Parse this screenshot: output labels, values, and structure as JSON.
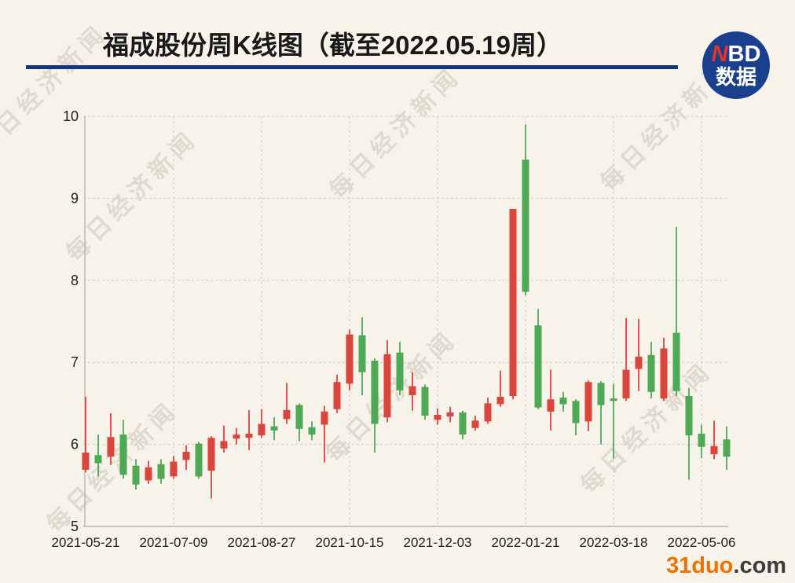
{
  "title": "福成股份周K线图（截至2022.05.19周）",
  "logo": {
    "line1_accent": "N",
    "line1_rest": "BD",
    "line2": "数据",
    "circle_color": "#1b3f8f",
    "accent_color": "#e2352b"
  },
  "watermark": {
    "text": "每日经济新闻"
  },
  "footer_brand": {
    "bold": "31duo",
    "suffix": ".com",
    "bold_color": "#f07000"
  },
  "colors": {
    "background": "#f7f3eb",
    "up": "#dc453c",
    "down": "#4fa854",
    "grid": "#cccccc",
    "axis": "#b8b5ac",
    "label": "#1e1e1e",
    "title_underline": "#14387e"
  },
  "chart_data": {
    "type": "candlestick",
    "title": "福成股份周K线图（截至2022.05.19周）",
    "ylabel": "",
    "xlabel": "",
    "ylim": [
      5,
      10.3
    ],
    "y_ticks": [
      5,
      6,
      7,
      8,
      9,
      10
    ],
    "grid": "dashed",
    "x_tick_labels": [
      "2021-05-21",
      "2021-07-09",
      "2021-08-27",
      "2021-10-15",
      "2021-12-03",
      "2022-01-21",
      "2022-03-18",
      "2022-05-06"
    ],
    "x_tick_indices": [
      0,
      7,
      14,
      21,
      28,
      35,
      42,
      49
    ],
    "columns": [
      "date",
      "open",
      "high",
      "low",
      "close"
    ],
    "rows": [
      [
        "2021-05-21",
        5.69,
        6.58,
        5.66,
        5.9
      ],
      [
        "2021-05-28",
        5.87,
        6.12,
        5.61,
        5.77
      ],
      [
        "2021-06-04",
        5.85,
        6.38,
        5.75,
        6.09
      ],
      [
        "2021-06-11",
        6.12,
        6.3,
        5.58,
        5.63
      ],
      [
        "2021-06-18",
        5.74,
        5.82,
        5.45,
        5.51
      ],
      [
        "2021-06-25",
        5.56,
        5.8,
        5.52,
        5.72
      ],
      [
        "2021-07-02",
        5.76,
        5.82,
        5.52,
        5.58
      ],
      [
        "2021-07-09",
        5.61,
        5.86,
        5.58,
        5.79
      ],
      [
        "2021-07-16",
        5.81,
        5.99,
        5.69,
        5.91
      ],
      [
        "2021-07-23",
        6.01,
        6.03,
        5.58,
        5.61
      ],
      [
        "2021-07-30",
        5.68,
        6.1,
        5.34,
        6.08
      ],
      [
        "2021-08-06",
        5.95,
        6.23,
        5.9,
        6.04
      ],
      [
        "2021-08-13",
        6.07,
        6.2,
        6.0,
        6.12
      ],
      [
        "2021-08-20",
        6.08,
        6.42,
        5.93,
        6.13
      ],
      [
        "2021-08-27",
        6.11,
        6.43,
        6.08,
        6.25
      ],
      [
        "2021-09-03",
        6.22,
        6.33,
        6.05,
        6.17
      ],
      [
        "2021-09-10",
        6.31,
        6.75,
        6.25,
        6.42
      ],
      [
        "2021-09-17",
        6.48,
        6.5,
        6.04,
        6.19
      ],
      [
        "2021-09-24",
        6.21,
        6.28,
        6.05,
        6.12
      ],
      [
        "2021-10-01",
        6.24,
        6.47,
        5.78,
        6.4
      ],
      [
        "2021-10-08",
        6.43,
        6.85,
        6.38,
        6.76
      ],
      [
        "2021-10-15",
        6.74,
        7.4,
        6.66,
        7.34
      ],
      [
        "2021-10-22",
        7.33,
        7.55,
        6.6,
        6.88
      ],
      [
        "2021-10-29",
        7.02,
        7.05,
        5.9,
        6.25
      ],
      [
        "2021-11-05",
        6.33,
        7.27,
        6.27,
        7.1
      ],
      [
        "2021-11-12",
        7.12,
        7.25,
        6.6,
        6.66
      ],
      [
        "2021-11-19",
        6.6,
        6.88,
        6.41,
        6.71
      ],
      [
        "2021-11-26",
        6.7,
        6.73,
        6.3,
        6.35
      ],
      [
        "2021-12-03",
        6.3,
        6.44,
        6.24,
        6.36
      ],
      [
        "2021-12-10",
        6.34,
        6.46,
        6.27,
        6.39
      ],
      [
        "2021-12-17",
        6.39,
        6.41,
        6.06,
        6.12
      ],
      [
        "2021-12-24",
        6.2,
        6.35,
        6.17,
        6.29
      ],
      [
        "2021-12-31",
        6.28,
        6.57,
        6.25,
        6.5
      ],
      [
        "2022-01-07",
        6.49,
        6.9,
        6.46,
        6.58
      ],
      [
        "2022-01-14",
        6.59,
        8.87,
        6.55,
        8.87
      ],
      [
        "2022-01-21",
        9.47,
        9.9,
        7.82,
        7.86
      ],
      [
        "2022-01-28",
        7.45,
        7.65,
        6.43,
        6.45
      ],
      [
        "2022-02-11",
        6.4,
        6.91,
        6.17,
        6.55
      ],
      [
        "2022-02-18",
        6.57,
        6.64,
        6.4,
        6.49
      ],
      [
        "2022-02-25",
        6.53,
        6.55,
        6.11,
        6.26
      ],
      [
        "2022-03-04",
        6.28,
        6.78,
        6.16,
        6.76
      ],
      [
        "2022-03-11",
        6.75,
        6.77,
        6.0,
        6.48
      ],
      [
        "2022-03-18",
        6.56,
        6.74,
        5.83,
        6.53
      ],
      [
        "2022-03-25",
        6.56,
        7.54,
        6.53,
        6.91
      ],
      [
        "2022-04-01",
        6.92,
        7.53,
        6.65,
        7.07
      ],
      [
        "2022-04-08",
        7.09,
        7.25,
        6.56,
        6.64
      ],
      [
        "2022-04-15",
        6.56,
        7.3,
        6.53,
        7.17
      ],
      [
        "2022-04-22",
        7.36,
        8.65,
        6.59,
        6.65
      ],
      [
        "2022-04-29",
        6.59,
        6.69,
        5.57,
        6.11
      ],
      [
        "2022-05-06",
        6.13,
        6.24,
        5.83,
        5.97
      ],
      [
        "2022-05-13",
        5.88,
        6.29,
        5.82,
        5.98
      ],
      [
        "2022-05-20",
        6.06,
        6.22,
        5.69,
        5.85
      ]
    ]
  }
}
